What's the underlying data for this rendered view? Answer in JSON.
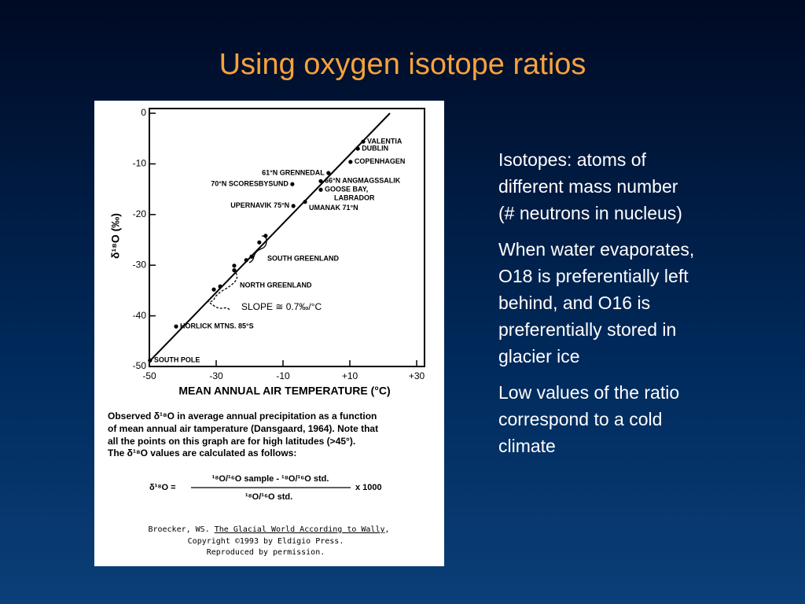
{
  "title": "Using oxygen isotope ratios",
  "bullets": [
    [
      "Isotopes: atoms of",
      "different mass number",
      "(# neutrons in nucleus)"
    ],
    [
      "When water evaporates,",
      "O18 is preferentially left",
      "behind, and O16 is",
      "preferentially stored in",
      "glacier ice"
    ],
    [
      "Low values of the ratio",
      "correspond to a cold",
      "climate"
    ]
  ],
  "chart_data": {
    "type": "scatter",
    "x_label": "MEAN ANNUAL AIR TEMPERATURE (°C)",
    "y_label": "δ¹⁸O (‰)",
    "x": [
      14,
      12.4,
      10.2,
      3.6,
      1.3,
      1.3,
      -7.2,
      -6.9,
      -3.4,
      -15.2,
      -17.1,
      -19.4,
      -21,
      -24.6,
      -24.6,
      -28.8,
      -30.7,
      -42,
      -49.8
    ],
    "values": [
      -5.6,
      -7,
      -9.6,
      -11.8,
      -13.4,
      -15.1,
      -14,
      -18.3,
      -17.5,
      -24.2,
      -25.5,
      -28.3,
      -29,
      -30.1,
      -31,
      -34.2,
      -34.8,
      -42.1,
      -48.8
    ],
    "labels": [
      "VALENTIA",
      "DUBLIN",
      "COPENHAGEN",
      "61°N GRENNEDAL",
      "66°N ANGMAGSSALIK",
      [
        "GOOSE BAY,",
        "LABRADOR"
      ],
      "70°N SCORESBYSUND",
      "UPERNAVIK 75°N",
      "UMANAK 71°N",
      null,
      null,
      null,
      null,
      null,
      null,
      null,
      null,
      "HORLICK MTNS. 85°S",
      "SOUTH POLE"
    ],
    "color": "#000000",
    "fit": {
      "x": [
        -50,
        22
      ],
      "values": [
        -49,
        0
      ]
    },
    "annotations": [
      "SOUTH GREENLAND",
      "NORTH GREENLAND",
      "SLOPE ≅ 0.7‰/°C"
    ],
    "xlim": [
      -50,
      30
    ],
    "ylim": [
      -50,
      0
    ],
    "xticks": [
      -50,
      -30,
      -10,
      {
        "value": 10,
        "label": "+10"
      },
      {
        "value": 30,
        "label": "+30"
      }
    ],
    "yticks": [
      0,
      -10,
      -20,
      -30,
      -40,
      -50
    ]
  },
  "caption": [
    "Observed  δ¹⁸O in average annual precipitation as a function",
    "of mean annual air tamperature (Dansgaard, 1964).  Note that",
    "all the points on this graph are for high latitudes (>45°).",
    "The  δ¹⁸O  values are calculated as follows:"
  ],
  "formula": {
    "lhs": "δ¹⁸O =",
    "numerator": "¹⁸O/¹⁶O sample - ¹⁸O/¹⁶O std.",
    "denominator": "¹⁸O/¹⁶O std.",
    "factor": "x 1000"
  },
  "credit": {
    "author": "Broecker, WS. ",
    "book": "The Glacial World According to Wally",
    "end": ",",
    "copyright": "Copyright ©1993 by Eldigio Press.",
    "permission": "Reproduced by permission."
  }
}
